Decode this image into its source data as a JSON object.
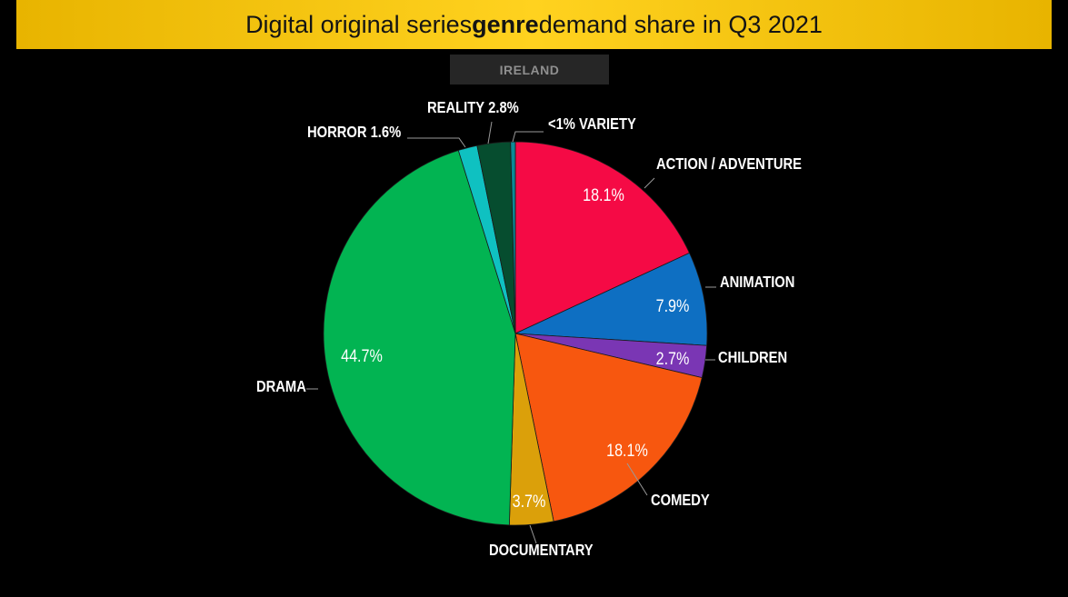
{
  "header": {
    "title_before": "Digital original series ",
    "title_bold": "genre",
    "title_after": " demand share in Q3 2021",
    "region": "IRELAND"
  },
  "chart_data": {
    "type": "pie",
    "title": "Digital original series genre demand share in Q3 2021",
    "subtitle": "IRELAND",
    "slices": [
      {
        "name": "ACTION / ADVENTURE",
        "value": 18.1,
        "label": "18.1%",
        "color": "#f50a45"
      },
      {
        "name": "ANIMATION",
        "value": 7.9,
        "label": "7.9%",
        "color": "#0e6fc2"
      },
      {
        "name": "CHILDREN",
        "value": 2.7,
        "label": "2.7%",
        "color": "#7a36b4"
      },
      {
        "name": "COMEDY",
        "value": 18.1,
        "label": "18.1%",
        "color": "#f7570f"
      },
      {
        "name": "DOCUMENTARY",
        "value": 3.7,
        "label": "3.7%",
        "color": "#dba00a"
      },
      {
        "name": "DRAMA",
        "value": 44.7,
        "label": "44.7%",
        "color": "#02b452"
      },
      {
        "name": "HORROR",
        "value": 1.6,
        "label": "1.6%",
        "color": "#0fc1c1"
      },
      {
        "name": "REALITY",
        "value": 2.8,
        "label": "2.8%",
        "color": "#064d2f"
      },
      {
        "name": "VARIETY",
        "value": 0.4,
        "label": "<1%",
        "color": "#0b8a96"
      }
    ]
  }
}
